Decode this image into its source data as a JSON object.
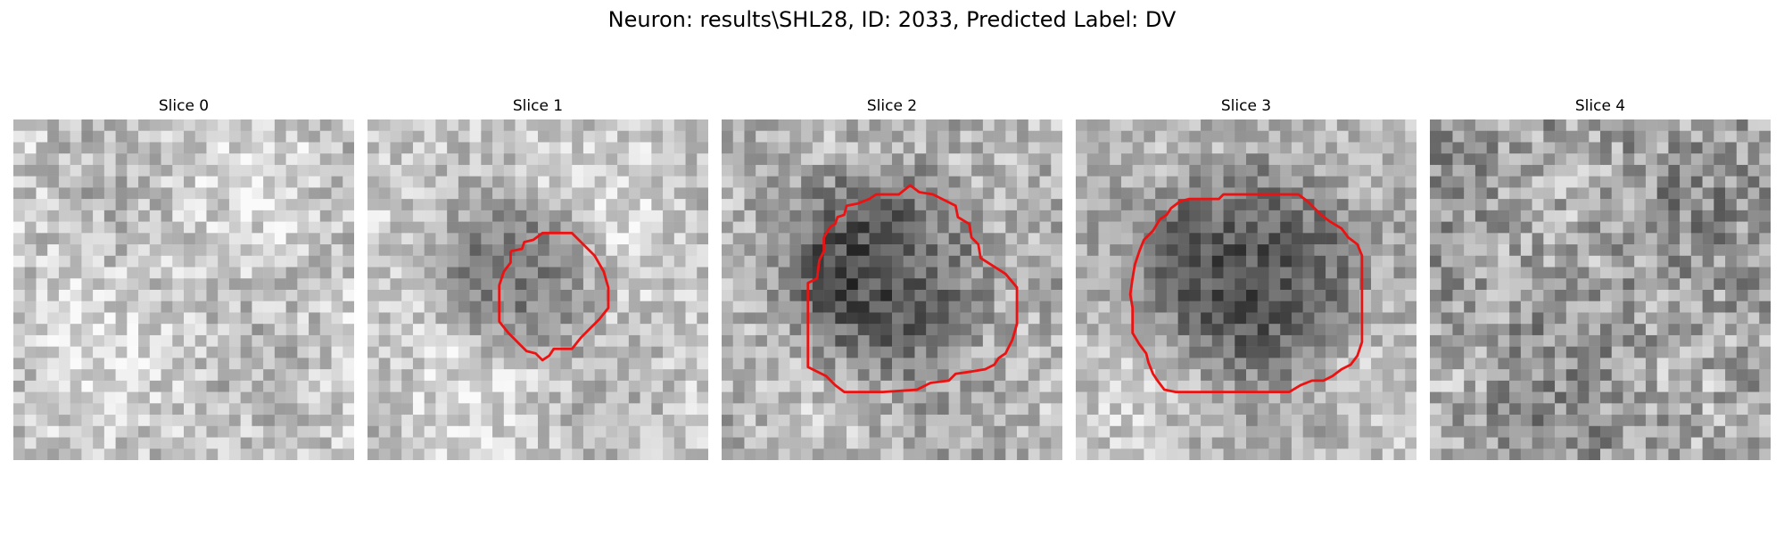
{
  "figure": {
    "title": "Neuron: results\\SHL28, ID: 2033, Predicted Label: DV",
    "contour_color": "#ee1111",
    "slices": [
      {
        "title": "Slice 0",
        "has_contour": false,
        "darkness_center": null
      },
      {
        "title": "Slice 1",
        "has_contour": true
      },
      {
        "title": "Slice 2",
        "has_contour": true
      },
      {
        "title": "Slice 3",
        "has_contour": true
      },
      {
        "title": "Slice 4",
        "has_contour": false
      }
    ]
  }
}
